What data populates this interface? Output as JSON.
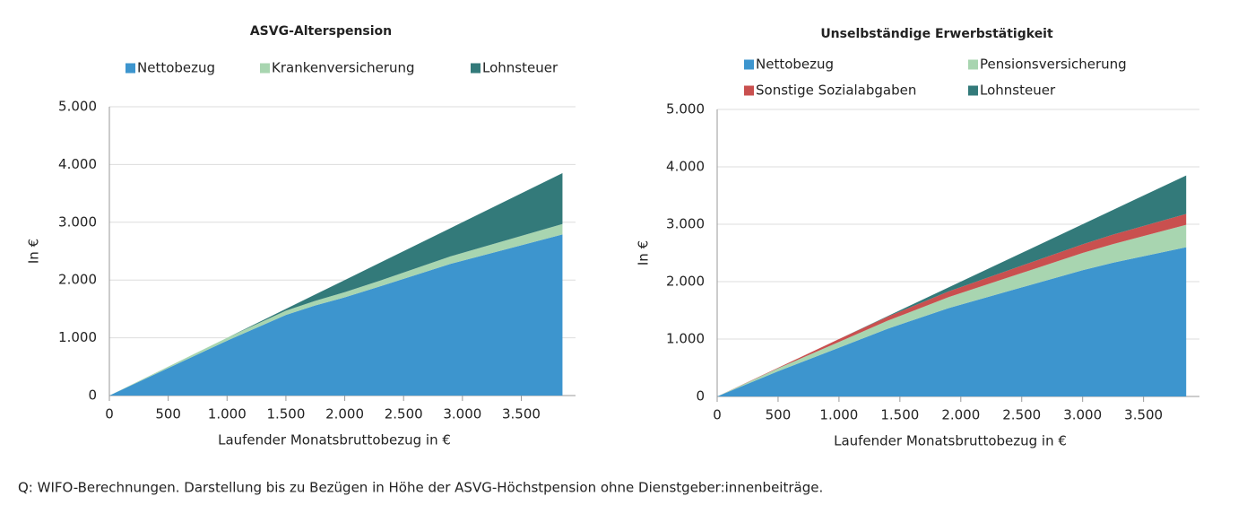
{
  "chart_data": [
    {
      "type": "area",
      "stacked": true,
      "title": "ASVG-Alterspension",
      "x_label": "Laufender Monatsbruttobezug in €",
      "y_label": "In €",
      "x": [
        0,
        500,
        1000,
        1500,
        1750,
        2000,
        2300,
        2900,
        3850
      ],
      "series": [
        {
          "name": "Nettobezug",
          "color": "#3d95ce",
          "values": [
            0,
            475,
            950,
            1395,
            1560,
            1700,
            1890,
            2280,
            2790
          ]
        },
        {
          "name": "Krankenversicherung",
          "color": "#a8d5b0",
          "values": [
            0,
            25,
            50,
            75,
            80,
            90,
            100,
            130,
            180
          ]
        },
        {
          "name": "Lohnsteuer",
          "color": "#337a7a",
          "values": [
            0,
            0,
            0,
            30,
            110,
            210,
            310,
            490,
            880
          ]
        }
      ],
      "xlim": [
        0,
        3900
      ],
      "xticks": [
        0,
        500,
        {
          "value": 1000,
          "label": "1.000"
        },
        {
          "value": 1500,
          "label": "1.500"
        },
        {
          "value": 2000,
          "label": "2.000"
        },
        {
          "value": 2500,
          "label": "2.500"
        },
        {
          "value": 3000,
          "label": "3.000"
        },
        {
          "value": 3500,
          "label": "3.500"
        }
      ],
      "ylim": [
        0,
        5000
      ],
      "yticks": [
        0,
        {
          "value": 1000,
          "label": "1.000"
        },
        {
          "value": 2000,
          "label": "2.000"
        },
        {
          "value": 3000,
          "label": "3.000"
        },
        {
          "value": 4000,
          "label": "4.000"
        },
        {
          "value": 5000,
          "label": "5.000"
        }
      ],
      "grid": true
    },
    {
      "type": "area",
      "stacked": true,
      "title": "Unselbständige Erwerbstätigkeit",
      "x_label": "Laufender Monatsbruttobezug in €",
      "y_label": "In €",
      "x": [
        0,
        500,
        1000,
        1400,
        1900,
        2500,
        3000,
        3250,
        3850
      ],
      "series": [
        {
          "name": "Nettobezug",
          "color": "#3d95ce",
          "values": [
            0,
            440,
            850,
            1180,
            1540,
            1900,
            2200,
            2330,
            2600
          ]
        },
        {
          "name": "Pensionsversicherung",
          "color": "#a8d5b0",
          "values": [
            0,
            50,
            100,
            140,
            190,
            250,
            300,
            325,
            390
          ]
        },
        {
          "name": "Sonstige Sozialabgaben",
          "color": "#c9504f",
          "values": [
            0,
            10,
            50,
            70,
            100,
            130,
            150,
            165,
            190
          ]
        },
        {
          "name": "Lohnsteuer",
          "color": "#337a7a",
          "values": [
            0,
            0,
            0,
            10,
            70,
            220,
            350,
            430,
            670
          ]
        }
      ],
      "xlim": [
        0,
        3900
      ],
      "xticks": [
        0,
        500,
        {
          "value": 1000,
          "label": "1.000"
        },
        {
          "value": 1500,
          "label": "1.500"
        },
        {
          "value": 2000,
          "label": "2.000"
        },
        {
          "value": 2500,
          "label": "2.500"
        },
        {
          "value": 3000,
          "label": "3.000"
        },
        {
          "value": 3500,
          "label": "3.500"
        }
      ],
      "ylim": [
        0,
        5000
      ],
      "yticks": [
        0,
        {
          "value": 1000,
          "label": "1.000"
        },
        {
          "value": 2000,
          "label": "2.000"
        },
        {
          "value": 3000,
          "label": "3.000"
        },
        {
          "value": 4000,
          "label": "4.000"
        },
        {
          "value": 5000,
          "label": "5.000"
        }
      ],
      "grid": true
    }
  ],
  "source": "Q: WIFO-Berechnungen. Darstellung bis zu Bezügen in Höhe der ASVG-Höchstpension ohne Dienstgeber:innenbeiträge."
}
